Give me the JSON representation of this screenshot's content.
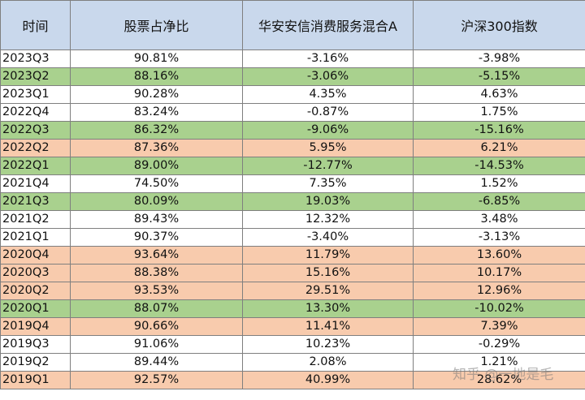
{
  "table": {
    "headers": [
      "时间",
      "股票占净比",
      "华安安信消费服务混合A",
      "沪深300指数"
    ],
    "rows": [
      {
        "period": "2023Q3",
        "stock_ratio": "90.81%",
        "fund": "-3.16%",
        "csi300": "-3.98%",
        "color": "white"
      },
      {
        "period": "2023Q2",
        "stock_ratio": "88.16%",
        "fund": "-3.06%",
        "csi300": "-5.15%",
        "color": "green"
      },
      {
        "period": "2023Q1",
        "stock_ratio": "90.28%",
        "fund": "4.35%",
        "csi300": "4.63%",
        "color": "white"
      },
      {
        "period": "2022Q4",
        "stock_ratio": "83.24%",
        "fund": "-0.87%",
        "csi300": "1.75%",
        "color": "white"
      },
      {
        "period": "2022Q3",
        "stock_ratio": "86.32%",
        "fund": "-9.06%",
        "csi300": "-15.16%",
        "color": "green"
      },
      {
        "period": "2022Q2",
        "stock_ratio": "87.36%",
        "fund": "5.95%",
        "csi300": "6.21%",
        "color": "orange"
      },
      {
        "period": "2022Q1",
        "stock_ratio": "89.00%",
        "fund": "-12.77%",
        "csi300": "-14.53%",
        "color": "green"
      },
      {
        "period": "2021Q4",
        "stock_ratio": "74.50%",
        "fund": "7.35%",
        "csi300": "1.52%",
        "color": "white"
      },
      {
        "period": "2021Q3",
        "stock_ratio": "80.09%",
        "fund": "19.03%",
        "csi300": "-6.85%",
        "color": "green"
      },
      {
        "period": "2021Q2",
        "stock_ratio": "89.43%",
        "fund": "12.32%",
        "csi300": "3.48%",
        "color": "white"
      },
      {
        "period": "2021Q1",
        "stock_ratio": "90.37%",
        "fund": "-3.40%",
        "csi300": "-3.13%",
        "color": "white"
      },
      {
        "period": "2020Q4",
        "stock_ratio": "93.64%",
        "fund": "11.79%",
        "csi300": "13.60%",
        "color": "orange"
      },
      {
        "period": "2020Q3",
        "stock_ratio": "88.38%",
        "fund": "15.16%",
        "csi300": "10.17%",
        "color": "orange"
      },
      {
        "period": "2020Q2",
        "stock_ratio": "93.53%",
        "fund": "29.51%",
        "csi300": "12.96%",
        "color": "orange"
      },
      {
        "period": "2020Q1",
        "stock_ratio": "88.07%",
        "fund": "13.30%",
        "csi300": "-10.02%",
        "color": "green"
      },
      {
        "period": "2019Q4",
        "stock_ratio": "90.66%",
        "fund": "11.41%",
        "csi300": "7.39%",
        "color": "orange"
      },
      {
        "period": "2019Q3",
        "stock_ratio": "91.06%",
        "fund": "10.23%",
        "csi300": "-0.29%",
        "color": "white"
      },
      {
        "period": "2019Q2",
        "stock_ratio": "89.44%",
        "fund": "2.08%",
        "csi300": "1.21%",
        "color": "white"
      },
      {
        "period": "2019Q1",
        "stock_ratio": "92.57%",
        "fund": "40.99%",
        "csi300": "28.62%",
        "color": "orange"
      }
    ]
  },
  "watermark": "知乎 @一地是毛",
  "colors": {
    "header": "#c9d8ec",
    "green": "#a9d18e",
    "orange": "#f8cbad",
    "white": "#ffffff",
    "border": "#7f7f7f"
  }
}
